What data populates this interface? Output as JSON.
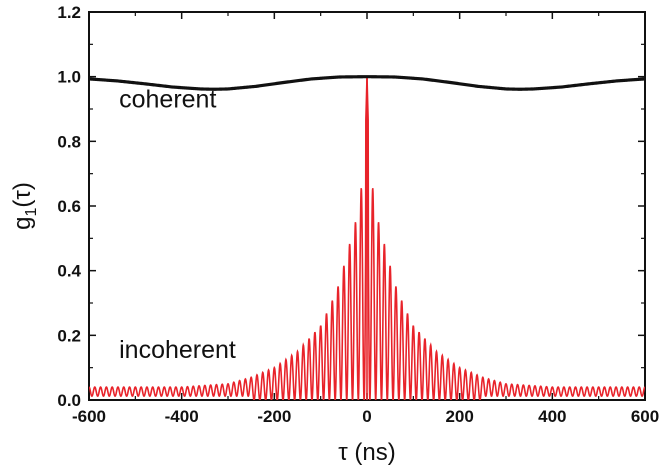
{
  "chart_data": {
    "type": "line",
    "xlabel": "τ (ns)",
    "ylabel": "g1(τ)",
    "ylabel_parts": {
      "base": "g",
      "sub": "1",
      "arg": "(τ)"
    },
    "xlim": [
      -600,
      600
    ],
    "ylim": [
      0.0,
      1.2
    ],
    "xticks": [
      "-600",
      "-400",
      "-200",
      "0",
      "200",
      "400",
      "600"
    ],
    "xtick_values": [
      -600,
      -400,
      -200,
      0,
      200,
      400,
      600
    ],
    "yticks": [
      "0.0",
      "0.2",
      "0.4",
      "0.6",
      "0.8",
      "1.0",
      "1.2"
    ],
    "ytick_values": [
      0.0,
      0.2,
      0.4,
      0.6,
      0.8,
      1.0,
      1.2
    ],
    "grid": false,
    "legend": "none",
    "annotations": [
      {
        "text": "coherent",
        "x": -535,
        "y": 0.905
      },
      {
        "text": "incoherent",
        "x": -535,
        "y": 0.13
      }
    ],
    "series": [
      {
        "label": "coherent",
        "color": "#111111",
        "x": [
          -600,
          -540,
          -480,
          -420,
          -360,
          -330,
          -300,
          -240,
          -180,
          -120,
          -60,
          0,
          60,
          120,
          180,
          240,
          300,
          330,
          360,
          420,
          480,
          540,
          600
        ],
        "y": [
          0.993,
          0.987,
          0.978,
          0.968,
          0.962,
          0.961,
          0.962,
          0.97,
          0.982,
          0.993,
          0.999,
          1.0,
          0.999,
          0.993,
          0.982,
          0.97,
          0.962,
          0.961,
          0.962,
          0.968,
          0.978,
          0.987,
          0.993
        ]
      },
      {
        "label": "incoherent",
        "color": "#e8232a",
        "envelope_x": [
          -600,
          -500,
          -400,
          -300,
          -250,
          -200,
          -150,
          -100,
          -80,
          -60,
          -40,
          -30,
          -20,
          -10,
          -5,
          0,
          5,
          10,
          20,
          30,
          40,
          60,
          80,
          100,
          150,
          200,
          250,
          300,
          400,
          500,
          600
        ],
        "envelope_y": [
          0.04,
          0.04,
          0.04,
          0.05,
          0.07,
          0.1,
          0.15,
          0.23,
          0.29,
          0.36,
          0.47,
          0.52,
          0.58,
          0.68,
          0.73,
          1.0,
          0.73,
          0.68,
          0.58,
          0.52,
          0.47,
          0.36,
          0.29,
          0.23,
          0.15,
          0.1,
          0.07,
          0.05,
          0.04,
          0.04,
          0.04
        ],
        "fringe_period_ns": 12.5
      }
    ]
  }
}
